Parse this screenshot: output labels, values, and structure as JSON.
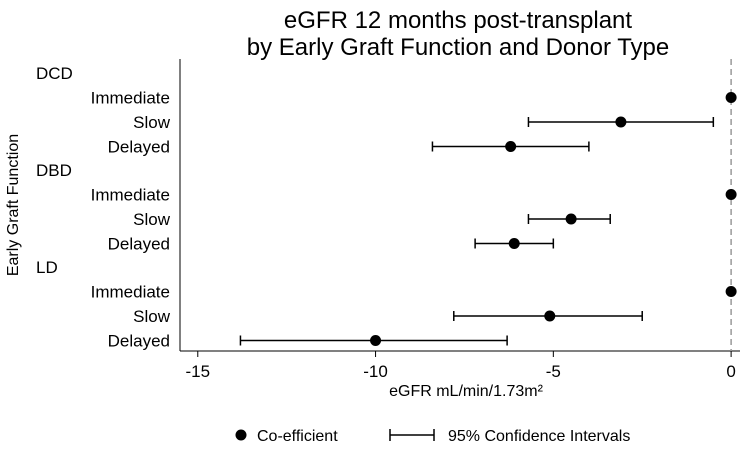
{
  "chart_data": {
    "type": "scatter",
    "title": [
      "eGFR 12 months post-transplant",
      "by Early Graft Function and Donor Type"
    ],
    "xlabel": "eGFR mL/min/1.73m²",
    "ylabel": "Early Graft Function",
    "xlim": [
      -15.5,
      0.25
    ],
    "xticks": [
      -15,
      -10,
      -5,
      0
    ],
    "xtick_labels": [
      "-15",
      "-10",
      "-5",
      "0"
    ],
    "reference_line": {
      "x": 0,
      "style": "dashed",
      "color": "#999999"
    },
    "grid": false,
    "groups": [
      {
        "name": "DCD",
        "rows": [
          {
            "label": "Immediate",
            "estimate": 0,
            "ci": null
          },
          {
            "label": "Slow",
            "estimate": -3.1,
            "ci": [
              -5.7,
              -0.5
            ]
          },
          {
            "label": "Delayed",
            "estimate": -6.2,
            "ci": [
              -8.4,
              -4.0
            ]
          }
        ]
      },
      {
        "name": "DBD",
        "rows": [
          {
            "label": "Immediate",
            "estimate": 0,
            "ci": null
          },
          {
            "label": "Slow",
            "estimate": -4.5,
            "ci": [
              -5.7,
              -3.4
            ]
          },
          {
            "label": "Delayed",
            "estimate": -6.1,
            "ci": [
              -7.2,
              -5.0
            ]
          }
        ]
      },
      {
        "name": "LD",
        "rows": [
          {
            "label": "Immediate",
            "estimate": 0,
            "ci": null
          },
          {
            "label": "Slow",
            "estimate": -5.1,
            "ci": [
              -7.8,
              -2.5
            ]
          },
          {
            "label": "Delayed",
            "estimate": -10.0,
            "ci": [
              -13.8,
              -6.3
            ]
          }
        ]
      }
    ],
    "legend": {
      "placement": "bottom",
      "items": [
        {
          "label": "Co-efficient",
          "symbol": "dot"
        },
        {
          "label": "95% Confidence Intervals",
          "symbol": "capped-line"
        }
      ]
    },
    "colors": {
      "marker": "#000000",
      "ci": "#000000",
      "axis": "#000000",
      "reference": "#999999"
    }
  }
}
